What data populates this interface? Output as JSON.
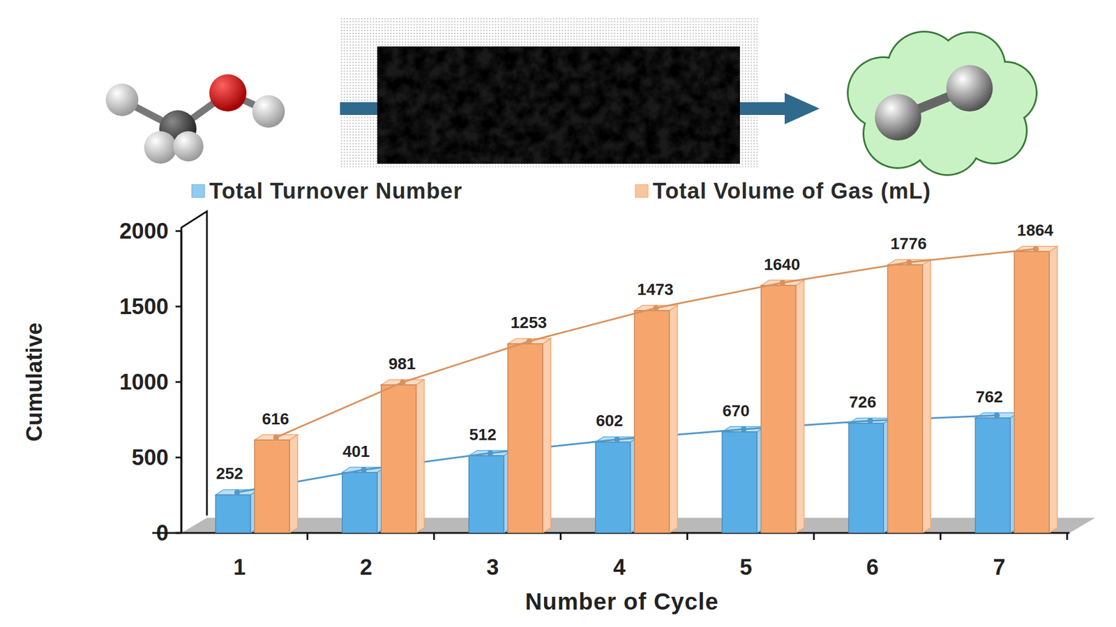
{
  "chart_data": {
    "type": "bar",
    "x_label": "Number of Cycle",
    "y_label": "Cumulative",
    "categories": [
      "1",
      "2",
      "3",
      "4",
      "5",
      "6",
      "7"
    ],
    "series": [
      {
        "name": "Total Turnover Number",
        "color": "#5aaee6",
        "values": [
          252,
          401,
          512,
          602,
          670,
          726,
          762
        ]
      },
      {
        "name": "Total Volume of Gas (mL)",
        "color": "#f6a66c",
        "values": [
          616,
          981,
          1253,
          1473,
          1640,
          1776,
          1864
        ]
      }
    ],
    "ylim": [
      0,
      2000
    ],
    "yticks": [
      0,
      500,
      1000,
      1500,
      2000
    ],
    "grid": false,
    "legend": "top",
    "data_labels": true
  }
}
